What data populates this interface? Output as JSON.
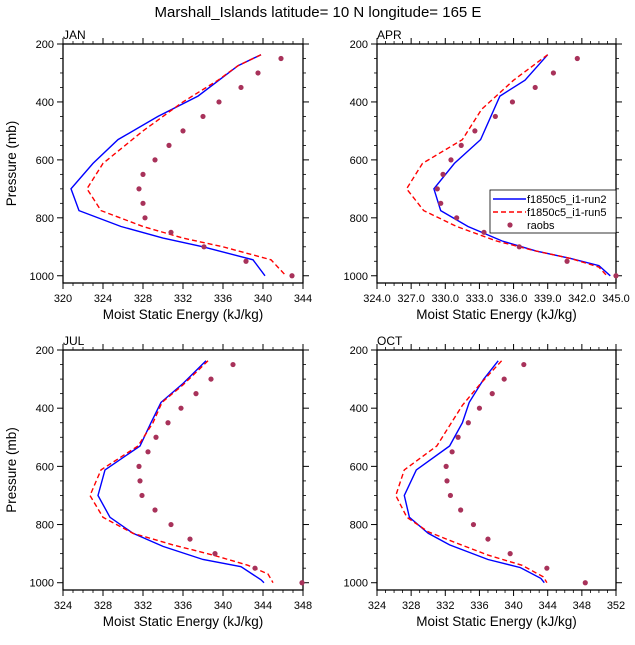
{
  "title": "Marshall_Islands  latitude= 10 N longitude= 165 E",
  "legend": {
    "placement": "inside APR panel, right",
    "entries": [
      "f1850c5_i1-run2",
      "f1850c5_i1-run5",
      "raobs"
    ]
  },
  "colors": {
    "run2": "#0000ff",
    "run5": "#ff0000",
    "raobs": "#a8325a"
  },
  "chart_data": [
    {
      "type": "line",
      "title": "JAN",
      "xlabel": "Moist Static Energy (kJ/kg)",
      "ylabel": "Pressure (mb)",
      "xlim": [
        320,
        344
      ],
      "xticks": [
        320,
        324,
        328,
        332,
        336,
        340,
        344
      ],
      "xtick_labels": [
        "320",
        "324",
        "328",
        "332",
        "336",
        "340",
        "344"
      ],
      "ylim": [
        200,
        1025
      ],
      "yticks": [
        200,
        400,
        600,
        800,
        1000
      ],
      "ytick_labels": [
        "200",
        "400",
        "600",
        "800",
        "1000"
      ],
      "series": [
        {
          "name": "f1850c5_i1-run2",
          "style": "solid",
          "x": [
            339.8,
            337.5,
            333.5,
            329.5,
            325.5,
            323.0,
            320.8,
            321.6,
            325.8,
            330.0,
            334.0,
            339.0,
            340.2
          ],
          "y": [
            237,
            275,
            380,
            450,
            530,
            612,
            700,
            775,
            830,
            870,
            900,
            945,
            1000
          ]
        },
        {
          "name": "f1850c5_i1-run5",
          "style": "dashed",
          "x": [
            339.8,
            337.5,
            335.5,
            332.0,
            328.0,
            324.0,
            322.4,
            323.8,
            328.0,
            332.0,
            336.0,
            340.8,
            342.3
          ],
          "y": [
            237,
            275,
            325,
            400,
            500,
            612,
            700,
            775,
            830,
            870,
            900,
            945,
            1000
          ]
        },
        {
          "name": "raobs",
          "style": "markers",
          "x": [
            341.8,
            339.5,
            337.8,
            335.6,
            334.0,
            332.0,
            330.6,
            329.2,
            328.0,
            327.6,
            328.0,
            328.2,
            330.8,
            334.1,
            338.3,
            342.9
          ],
          "y": [
            250,
            300,
            350,
            400,
            450,
            500,
            550,
            600,
            650,
            700,
            750,
            800,
            850,
            900,
            950,
            1000
          ]
        }
      ]
    },
    {
      "type": "line",
      "title": "APR",
      "xlabel": "Moist Static Energy (kJ/kg)",
      "ylabel": "",
      "xlim": [
        324,
        345
      ],
      "xticks": [
        324,
        327,
        330,
        333,
        336,
        339,
        342,
        345
      ],
      "xtick_labels": [
        "324.0",
        "327.0",
        "330.0",
        "333.0",
        "336.0",
        "339.0",
        "342.0",
        "345.0"
      ],
      "ylim": [
        200,
        1025
      ],
      "yticks": [
        200,
        400,
        600,
        800,
        1000
      ],
      "ytick_labels": [
        "200",
        "400",
        "600",
        "800",
        "1000"
      ],
      "series": [
        {
          "name": "f1850c5_i1-run2",
          "style": "solid",
          "x": [
            339.0,
            337.0,
            334.8,
            333.1,
            330.8,
            329.0,
            329.6,
            332.0,
            335.0,
            338.0,
            341.0,
            343.5,
            344.5
          ],
          "y": [
            237,
            325,
            380,
            530,
            612,
            700,
            775,
            830,
            880,
            915,
            940,
            965,
            1000
          ]
        },
        {
          "name": "f1850c5_i1-run5",
          "style": "dashed",
          "x": [
            339.0,
            336.0,
            333.2,
            331.5,
            328.0,
            326.6,
            328.1,
            331.0,
            334.5,
            338.0,
            341.0,
            343.5,
            344.2
          ],
          "y": [
            237,
            325,
            425,
            530,
            612,
            700,
            775,
            830,
            880,
            915,
            940,
            970,
            1000
          ]
        },
        {
          "name": "raobs",
          "style": "markers",
          "x": [
            341.6,
            339.5,
            337.9,
            335.9,
            334.4,
            332.6,
            331.4,
            330.5,
            329.8,
            329.3,
            329.6,
            331.0,
            333.4,
            336.5,
            340.7,
            345.0
          ],
          "y": [
            250,
            300,
            350,
            400,
            450,
            500,
            550,
            600,
            650,
            700,
            750,
            800,
            850,
            900,
            950,
            1000
          ]
        }
      ]
    },
    {
      "type": "line",
      "title": "JUL",
      "xlabel": "Moist Static Energy (kJ/kg)",
      "ylabel": "Pressure (mb)",
      "xlim": [
        324,
        348
      ],
      "xticks": [
        324,
        328,
        332,
        336,
        340,
        344,
        348
      ],
      "xtick_labels": [
        "324",
        "328",
        "332",
        "336",
        "340",
        "344",
        "348"
      ],
      "ylim": [
        200,
        1025
      ],
      "yticks": [
        200,
        400,
        600,
        800,
        1000
      ],
      "ytick_labels": [
        "200",
        "400",
        "600",
        "800",
        "1000"
      ],
      "series": [
        {
          "name": "f1850c5_i1-run2",
          "style": "solid",
          "x": [
            338.3,
            336.0,
            333.8,
            332.8,
            331.7,
            328.2,
            327.5,
            328.7,
            331.0,
            334.0,
            338.0,
            341.8,
            343.8,
            344.1
          ],
          "y": [
            237,
            315,
            380,
            450,
            530,
            612,
            700,
            775,
            830,
            875,
            920,
            945,
            990,
            1000
          ]
        },
        {
          "name": "f1850c5_i1-run5",
          "style": "dashed",
          "x": [
            338.5,
            336.0,
            333.9,
            333.0,
            331.5,
            327.8,
            326.7,
            328.0,
            331.0,
            335.0,
            339.0,
            342.5,
            344.5,
            345.0
          ],
          "y": [
            237,
            320,
            380,
            450,
            530,
            612,
            700,
            775,
            830,
            870,
            905,
            940,
            970,
            1000
          ]
        },
        {
          "name": "raobs",
          "style": "markers",
          "x": [
            341.0,
            338.8,
            337.3,
            335.8,
            334.5,
            333.3,
            332.5,
            331.6,
            331.7,
            331.9,
            333.2,
            334.8,
            336.7,
            339.2,
            343.2,
            347.9
          ],
          "y": [
            250,
            300,
            350,
            400,
            450,
            500,
            550,
            600,
            650,
            700,
            750,
            800,
            850,
            900,
            950,
            1000
          ]
        }
      ]
    },
    {
      "type": "line",
      "title": "OCT",
      "xlabel": "Moist Static Energy (kJ/kg)",
      "ylabel": "",
      "xlim": [
        324,
        352
      ],
      "xticks": [
        324,
        328,
        332,
        336,
        340,
        344,
        348,
        352
      ],
      "xtick_labels": [
        "324",
        "328",
        "332",
        "336",
        "340",
        "344",
        "348",
        "352"
      ],
      "ylim": [
        200,
        1025
      ],
      "yticks": [
        200,
        400,
        600,
        800,
        1000
      ],
      "ytick_labels": [
        "200",
        "400",
        "600",
        "800",
        "1000"
      ],
      "series": [
        {
          "name": "f1850c5_i1-run2",
          "style": "solid",
          "x": [
            338.2,
            336.5,
            334.8,
            334.0,
            332.5,
            328.6,
            327.2,
            327.8,
            330.0,
            332.5,
            337.0,
            340.8,
            343.2,
            343.6
          ],
          "y": [
            237,
            300,
            380,
            450,
            530,
            612,
            700,
            775,
            830,
            870,
            920,
            948,
            985,
            1000
          ]
        },
        {
          "name": "f1850c5_i1-run5",
          "style": "dashed",
          "x": [
            338.6,
            336.0,
            334.0,
            332.5,
            331.0,
            327.2,
            326.2,
            327.5,
            330.0,
            333.0,
            337.0,
            341.0,
            343.5,
            343.9
          ],
          "y": [
            237,
            320,
            390,
            460,
            530,
            612,
            700,
            775,
            825,
            860,
            905,
            940,
            980,
            1000
          ]
        },
        {
          "name": "raobs",
          "style": "markers",
          "x": [
            341.2,
            338.9,
            337.5,
            336.0,
            334.7,
            333.5,
            332.8,
            332.1,
            332.2,
            332.6,
            333.8,
            335.3,
            337.0,
            339.6,
            343.9,
            348.4
          ],
          "y": [
            250,
            300,
            350,
            400,
            450,
            500,
            550,
            600,
            650,
            700,
            750,
            800,
            850,
            900,
            950,
            1000
          ]
        }
      ]
    }
  ]
}
